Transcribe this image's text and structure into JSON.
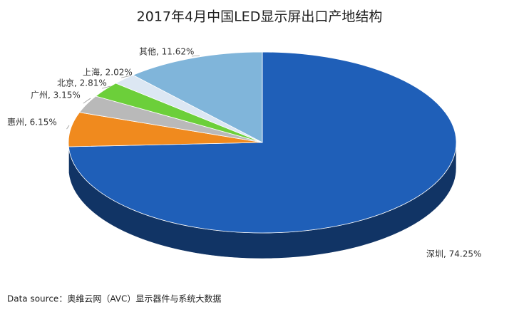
{
  "chart_data": {
    "type": "pie",
    "title": "2017年4月中国LED显示屏出口产地结构",
    "values": [
      74.25,
      6.15,
      3.15,
      2.81,
      2.02,
      11.62
    ],
    "value_labels": [
      "深圳, 74.25%",
      "惠州, 6.15%",
      "广州, 3.15%",
      "北京, 2.81%",
      "上海, 2.02%",
      "其他, 11.62%"
    ],
    "colors": [
      "#1f5fb8",
      "#f08a1e",
      "#b9b9b9",
      "#6ccf3a",
      "#dce7f3",
      "#80b5da"
    ],
    "source": "Data source：奥维云网（AVC）显示器件与系统大数据"
  }
}
